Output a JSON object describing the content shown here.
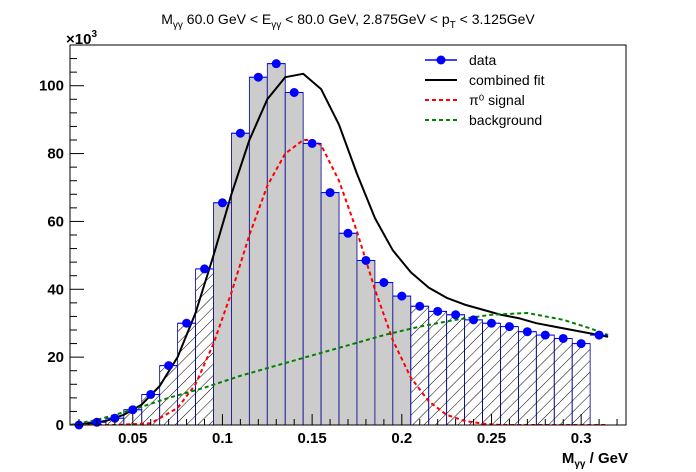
{
  "chart_data": {
    "type": "line",
    "title_parts": {
      "m": "M",
      "m_sub": "γγ",
      "mid1": " 60.0 GeV < E",
      "e_sub": "γγ",
      "mid2": " < 80.0 GeV, 2.875GeV < p",
      "pt_sub": "T",
      "end": " < 3.125GeV"
    },
    "xlabel_parts": {
      "main": "M",
      "sub": "γγ",
      "unit": " / GeV"
    },
    "ylabel": "",
    "y_multiplier": {
      "base": "×10",
      "exp": "3"
    },
    "xlim": [
      0.015,
      0.325
    ],
    "ylim": [
      0,
      112000
    ],
    "x_ticks": [
      {
        "v": 0.05,
        "label": "0.05"
      },
      {
        "v": 0.1,
        "label": "0.1"
      },
      {
        "v": 0.15,
        "label": "0.15"
      },
      {
        "v": 0.2,
        "label": "0.2"
      },
      {
        "v": 0.25,
        "label": "0.25"
      },
      {
        "v": 0.3,
        "label": "0.3"
      }
    ],
    "y_ticks": [
      {
        "v": 0,
        "label": "0"
      },
      {
        "v": 20000,
        "label": "20"
      },
      {
        "v": 40000,
        "label": "40"
      },
      {
        "v": 60000,
        "label": "60"
      },
      {
        "v": 80000,
        "label": "80"
      },
      {
        "v": 100000,
        "label": "100"
      }
    ],
    "bin_width": 0.01,
    "signal_window": [
      0.1,
      0.2
    ],
    "histogram_range": [
      0.02,
      0.3
    ],
    "series": [
      {
        "name": "data",
        "style": "markers",
        "color": "#0000ff",
        "x": [
          0.02,
          0.03,
          0.04,
          0.05,
          0.06,
          0.07,
          0.08,
          0.09,
          0.1,
          0.11,
          0.12,
          0.13,
          0.14,
          0.15,
          0.16,
          0.17,
          0.18,
          0.19,
          0.2,
          0.21,
          0.22,
          0.23,
          0.24,
          0.25,
          0.26,
          0.27,
          0.28,
          0.29,
          0.3,
          0.31
        ],
        "y": [
          0,
          800,
          2000,
          4500,
          9000,
          17500,
          30000,
          46000,
          65500,
          86000,
          102500,
          106500,
          98000,
          83000,
          68500,
          56500,
          48500,
          42000,
          38000,
          35000,
          33500,
          32500,
          31000,
          30000,
          29000,
          27500,
          26500,
          25500,
          24000,
          26500
        ]
      },
      {
        "name": "combined fit",
        "style": "solid",
        "color": "#000000",
        "x": [
          0.015,
          0.025,
          0.035,
          0.045,
          0.055,
          0.065,
          0.075,
          0.085,
          0.095,
          0.105,
          0.115,
          0.125,
          0.135,
          0.145,
          0.155,
          0.165,
          0.175,
          0.185,
          0.195,
          0.205,
          0.215,
          0.225,
          0.235,
          0.245,
          0.255,
          0.265,
          0.275,
          0.285,
          0.295,
          0.305,
          0.315
        ],
        "y": [
          0,
          400,
          1200,
          3000,
          6000,
          11500,
          20000,
          33000,
          50000,
          68000,
          84000,
          96000,
          102500,
          103500,
          99000,
          88500,
          74000,
          61000,
          51500,
          45000,
          40500,
          37500,
          35500,
          34000,
          32500,
          31500,
          30000,
          29000,
          28000,
          27000,
          26000
        ]
      },
      {
        "name": "π⁰ signal",
        "style": "dashed",
        "color": "#ff0000",
        "x": [
          0.015,
          0.04,
          0.06,
          0.075,
          0.085,
          0.095,
          0.105,
          0.115,
          0.125,
          0.135,
          0.145,
          0.15,
          0.155,
          0.165,
          0.175,
          0.185,
          0.195,
          0.205,
          0.215,
          0.225,
          0.235,
          0.245,
          0.255,
          0.265,
          0.28,
          0.3,
          0.315
        ],
        "y": [
          0,
          0,
          500,
          5000,
          12000,
          24000,
          39000,
          56000,
          70500,
          80000,
          84000,
          84000,
          82500,
          72000,
          57000,
          40000,
          25000,
          14000,
          7000,
          3000,
          1200,
          400,
          0,
          0,
          0,
          0,
          0
        ]
      },
      {
        "name": "background",
        "style": "dashed",
        "color": "#008000",
        "x": [
          0.015,
          0.03,
          0.05,
          0.07,
          0.09,
          0.11,
          0.13,
          0.15,
          0.17,
          0.19,
          0.21,
          0.23,
          0.25,
          0.27,
          0.29,
          0.305,
          0.315
        ],
        "y": [
          0,
          1500,
          4500,
          8000,
          11000,
          14500,
          17500,
          20500,
          23500,
          26500,
          29000,
          31000,
          32500,
          33000,
          31000,
          28500,
          26500
        ]
      }
    ],
    "legend": {
      "position": "top-right",
      "entries": [
        {
          "label": "data",
          "kind": "marker",
          "color": "#0000ff"
        },
        {
          "label": "combined fit",
          "kind": "solid",
          "color": "#000000"
        },
        {
          "label": "π⁰ signal",
          "kind": "dashed",
          "color": "#ff0000"
        },
        {
          "label": "background",
          "kind": "dashed",
          "color": "#008000"
        }
      ]
    },
    "grid": false
  }
}
